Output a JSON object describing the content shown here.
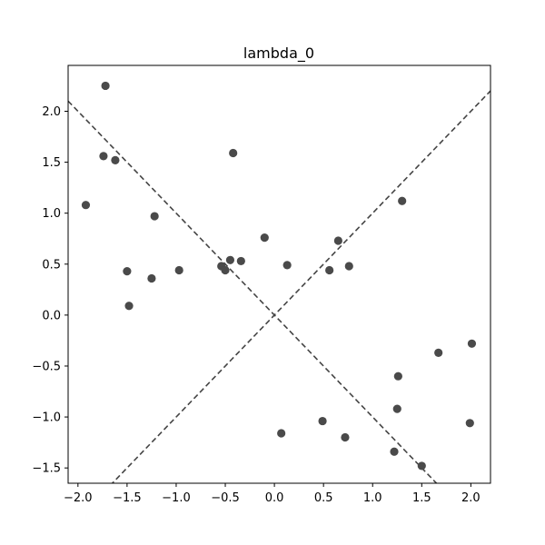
{
  "chart_data": {
    "type": "scatter",
    "title": "lambda_0",
    "xlabel": "",
    "ylabel": "",
    "xlim": [
      -2.1,
      2.2
    ],
    "ylim": [
      -1.65,
      2.45
    ],
    "grid": false,
    "x_ticks": [
      -2.0,
      -1.5,
      -1.0,
      -0.5,
      0.0,
      0.5,
      1.0,
      1.5,
      2.0
    ],
    "x_tick_labels": [
      "−2.0",
      "−1.5",
      "−1.0",
      "−0.5",
      "0.0",
      "0.5",
      "1.0",
      "1.5",
      "2.0"
    ],
    "y_ticks": [
      2.0,
      1.5,
      1.0,
      0.5,
      0.0,
      -0.5,
      -1.0,
      -1.5
    ],
    "y_tick_labels": [
      "2.0",
      "1.5",
      "1.0",
      "0.5",
      "0.0",
      "−0.5",
      "−1.0",
      "−1.5"
    ],
    "point_color": "#4a4a4a",
    "line_color": "#444444",
    "points": [
      {
        "x": -1.92,
        "y": 1.08
      },
      {
        "x": -1.72,
        "y": 2.25
      },
      {
        "x": -1.74,
        "y": 1.56
      },
      {
        "x": -1.62,
        "y": 1.52
      },
      {
        "x": -1.5,
        "y": 0.43
      },
      {
        "x": -1.48,
        "y": 0.09
      },
      {
        "x": -1.25,
        "y": 0.36
      },
      {
        "x": -1.22,
        "y": 0.97
      },
      {
        "x": -0.97,
        "y": 0.44
      },
      {
        "x": -0.54,
        "y": 0.48
      },
      {
        "x": -0.5,
        "y": 0.44
      },
      {
        "x": -0.45,
        "y": 0.54
      },
      {
        "x": -0.42,
        "y": 1.59
      },
      {
        "x": -0.34,
        "y": 0.53
      },
      {
        "x": -0.1,
        "y": 0.76
      },
      {
        "x": 0.07,
        "y": -1.16
      },
      {
        "x": 0.13,
        "y": 0.49
      },
      {
        "x": 0.49,
        "y": -1.04
      },
      {
        "x": 0.56,
        "y": 0.44
      },
      {
        "x": 0.65,
        "y": 0.73
      },
      {
        "x": 0.72,
        "y": -1.2
      },
      {
        "x": 0.76,
        "y": 0.48
      },
      {
        "x": 1.22,
        "y": -1.34
      },
      {
        "x": 1.25,
        "y": -0.92
      },
      {
        "x": 1.26,
        "y": -0.6
      },
      {
        "x": 1.3,
        "y": 1.12
      },
      {
        "x": 1.5,
        "y": -1.48
      },
      {
        "x": 1.67,
        "y": -0.37
      },
      {
        "x": 1.99,
        "y": -1.06
      },
      {
        "x": 2.01,
        "y": -0.28
      }
    ],
    "lines": [
      {
        "name": "",
        "slope": 1.0,
        "intercept": 0.0,
        "style": "dashed"
      },
      {
        "name": "",
        "slope": -1.0,
        "intercept": 0.0,
        "style": "dashed"
      }
    ]
  }
}
